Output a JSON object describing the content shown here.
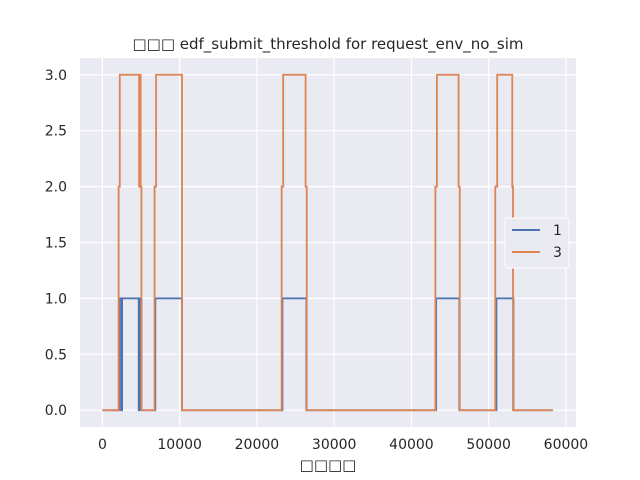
{
  "chart_data": {
    "type": "line",
    "title": "□□□ edf_submit_threshold for request_env_no_sim",
    "xlabel": "□□□□",
    "ylabel": "",
    "xlim": [
      -2900,
      61300
    ],
    "ylim": [
      -0.15,
      3.15
    ],
    "x_ticks": [
      0,
      10000,
      20000,
      30000,
      40000,
      50000,
      60000
    ],
    "x_tick_labels": [
      "0",
      "10000",
      "20000",
      "30000",
      "40000",
      "50000",
      "60000"
    ],
    "y_ticks": [
      0.0,
      0.5,
      1.0,
      1.5,
      2.0,
      2.5,
      3.0
    ],
    "y_tick_labels": [
      "0.0",
      "0.5",
      "1.0",
      "1.5",
      "2.0",
      "2.5",
      "3.0"
    ],
    "grid": true,
    "legend_position": "center-right",
    "colors": {
      "background": "#eaeaf2",
      "grid": "#ffffff",
      "series_1": "#4c72b0",
      "series_3": "#dd8452"
    },
    "series": [
      {
        "name": "1",
        "color": "#4c72b0",
        "points": [
          [
            0,
            0
          ],
          [
            2200,
            0
          ],
          [
            2200,
            1
          ],
          [
            2450,
            1
          ],
          [
            2450,
            0
          ],
          [
            2550,
            0
          ],
          [
            2550,
            1
          ],
          [
            4700,
            1
          ],
          [
            4700,
            0
          ],
          [
            4850,
            0
          ],
          [
            4850,
            1
          ],
          [
            5050,
            1
          ],
          [
            5050,
            0
          ],
          [
            6850,
            0
          ],
          [
            6850,
            1
          ],
          [
            10300,
            1
          ],
          [
            10300,
            0
          ],
          [
            23300,
            0
          ],
          [
            23300,
            1
          ],
          [
            26400,
            1
          ],
          [
            26400,
            0
          ],
          [
            43200,
            0
          ],
          [
            43200,
            1
          ],
          [
            46200,
            1
          ],
          [
            46200,
            0
          ],
          [
            51000,
            0
          ],
          [
            51000,
            1
          ],
          [
            53200,
            1
          ],
          [
            53200,
            0
          ],
          [
            58300,
            0
          ]
        ]
      },
      {
        "name": "3",
        "color": "#dd8452",
        "points": [
          [
            0,
            0
          ],
          [
            2100,
            0
          ],
          [
            2100,
            2
          ],
          [
            2250,
            2
          ],
          [
            2250,
            3
          ],
          [
            4750,
            3
          ],
          [
            4750,
            2
          ],
          [
            4850,
            2
          ],
          [
            4850,
            3
          ],
          [
            4950,
            3
          ],
          [
            4950,
            2
          ],
          [
            5050,
            2
          ],
          [
            5050,
            0
          ],
          [
            6750,
            0
          ],
          [
            6750,
            2
          ],
          [
            6950,
            2
          ],
          [
            6950,
            3
          ],
          [
            10300,
            3
          ],
          [
            10300,
            0
          ],
          [
            23200,
            0
          ],
          [
            23200,
            2
          ],
          [
            23400,
            2
          ],
          [
            23400,
            3
          ],
          [
            26300,
            3
          ],
          [
            26300,
            2
          ],
          [
            26450,
            2
          ],
          [
            26450,
            0
          ],
          [
            43100,
            0
          ],
          [
            43100,
            2
          ],
          [
            43300,
            2
          ],
          [
            43300,
            3
          ],
          [
            46100,
            3
          ],
          [
            46100,
            2
          ],
          [
            46250,
            2
          ],
          [
            46250,
            0
          ],
          [
            50850,
            0
          ],
          [
            50850,
            2
          ],
          [
            51100,
            2
          ],
          [
            51100,
            3
          ],
          [
            53050,
            3
          ],
          [
            53050,
            2
          ],
          [
            53150,
            2
          ],
          [
            53150,
            0
          ],
          [
            58300,
            0
          ]
        ]
      }
    ]
  }
}
